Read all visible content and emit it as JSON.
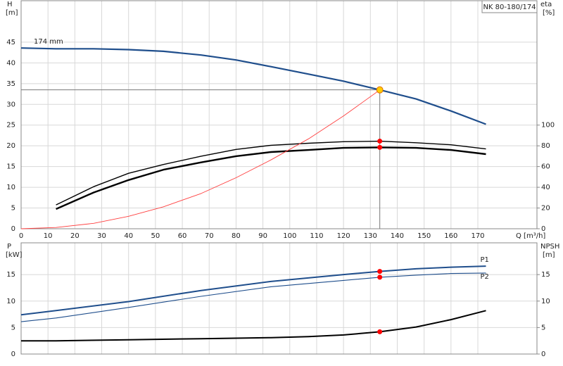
{
  "chart_data": [
    {
      "type": "line",
      "title": "NK 80-180/174",
      "ylabel": "H",
      "ylabel_unit": "[m]",
      "y2label": "eta",
      "y2label_unit": "[%]",
      "xlabel": "Q [m³/h]",
      "xlim": [
        0,
        192
      ],
      "ylim": [
        0,
        55
      ],
      "y2lim": [
        0,
        220
      ],
      "xticks": [
        0,
        10,
        20,
        30,
        40,
        50,
        60,
        70,
        80,
        90,
        100,
        110,
        120,
        130,
        140,
        150,
        160,
        170
      ],
      "yticks": [
        0,
        5,
        10,
        15,
        20,
        25,
        30,
        35,
        40,
        45
      ],
      "y2ticks": [
        0,
        20,
        40,
        60,
        80,
        100
      ],
      "show_xtick_labels": true,
      "grid": true,
      "series": [
        {
          "name": "174 mm",
          "label_at": "start",
          "color": "#1f4e8c",
          "linewidth": 2.2,
          "axis": "y",
          "x": [
            0,
            13,
            27,
            40,
            53,
            67,
            80,
            93,
            107,
            120,
            133.5,
            147,
            160,
            173
          ],
          "values": [
            43.6,
            43.4,
            43.4,
            43.2,
            42.8,
            41.9,
            40.7,
            39.1,
            37.3,
            35.6,
            33.5,
            31.3,
            28.4,
            25.2
          ]
        },
        {
          "color": "#000000",
          "linewidth": 1.4,
          "axis": "y2",
          "x": [
            13,
            27,
            40,
            53,
            67,
            80,
            93,
            107,
            120,
            133.5,
            147,
            160,
            173
          ],
          "values": [
            23,
            40.6,
            53.5,
            62,
            70,
            76.5,
            80.5,
            82.5,
            84,
            84.5,
            83,
            81,
            77
          ]
        },
        {
          "color": "#000000",
          "linewidth": 2.4,
          "axis": "y2",
          "x": [
            13,
            27,
            40,
            53,
            67,
            80,
            93,
            107,
            120,
            133.5,
            147,
            160,
            173
          ],
          "values": [
            19,
            35,
            47,
            57,
            64,
            70,
            74,
            76,
            78,
            78.5,
            78,
            76,
            72
          ]
        },
        {
          "color": "#ff4040",
          "linewidth": 0.9,
          "axis": "y",
          "x": [
            0,
            13,
            27,
            40,
            53,
            67,
            80,
            93,
            107,
            120,
            133.5
          ],
          "values": [
            0,
            0.3,
            1.3,
            3,
            5.3,
            8.5,
            12.3,
            16.6,
            21.7,
            27.2,
            33.5
          ]
        }
      ],
      "duty_point": {
        "x": 133.5,
        "y": 33.5,
        "color": "#ffcc00"
      },
      "markers": [
        {
          "x": 133.5,
          "y": 84.5,
          "axis": "y2",
          "color": "#ff0000"
        },
        {
          "x": 133.5,
          "y": 78.5,
          "axis": "y2",
          "color": "#ff0000"
        }
      ]
    },
    {
      "type": "line",
      "ylabel": "P",
      "ylabel_unit": "[kW]",
      "y2label": "NPSH",
      "y2label_unit": "[m]",
      "xlim": [
        0,
        192
      ],
      "ylim": [
        0,
        21
      ],
      "y2lim": [
        0,
        21
      ],
      "xticks": [
        0,
        10,
        20,
        30,
        40,
        50,
        60,
        70,
        80,
        90,
        100,
        110,
        120,
        130,
        140,
        150,
        160,
        170
      ],
      "yticks": [
        0,
        5,
        10,
        15
      ],
      "y2ticks": [
        0,
        5,
        10,
        15
      ],
      "show_xtick_labels": false,
      "grid": true,
      "series": [
        {
          "name": "P1",
          "label_at": "end",
          "color": "#1f4e8c",
          "linewidth": 2,
          "axis": "y",
          "x": [
            0,
            13,
            40,
            67,
            93,
            120,
            133.5,
            147,
            160,
            173
          ],
          "values": [
            7.4,
            8.2,
            9.9,
            12,
            13.7,
            15,
            15.6,
            16.1,
            16.4,
            16.6
          ]
        },
        {
          "name": "P2",
          "label_at": "end",
          "color": "#1f4e8c",
          "linewidth": 1.1,
          "axis": "y",
          "x": [
            0,
            13,
            40,
            67,
            93,
            120,
            133.5,
            147,
            160,
            173
          ],
          "values": [
            6.1,
            6.8,
            8.8,
            10.9,
            12.7,
            13.9,
            14.5,
            14.9,
            15.2,
            15.3
          ]
        },
        {
          "color": "#000000",
          "linewidth": 2,
          "axis": "y2",
          "x": [
            0,
            13,
            40,
            67,
            93,
            107,
            120,
            133.5,
            147,
            160,
            173
          ],
          "values": [
            2.5,
            2.5,
            2.7,
            2.9,
            3.1,
            3.3,
            3.6,
            4.2,
            5.1,
            6.5,
            8.2
          ]
        }
      ],
      "markers": [
        {
          "x": 133.5,
          "y": 15.6,
          "axis": "y",
          "color": "#ff0000"
        },
        {
          "x": 133.5,
          "y": 14.5,
          "axis": "y",
          "color": "#ff0000"
        },
        {
          "x": 133.5,
          "y": 4.2,
          "axis": "y2",
          "color": "#ff0000"
        }
      ]
    }
  ]
}
